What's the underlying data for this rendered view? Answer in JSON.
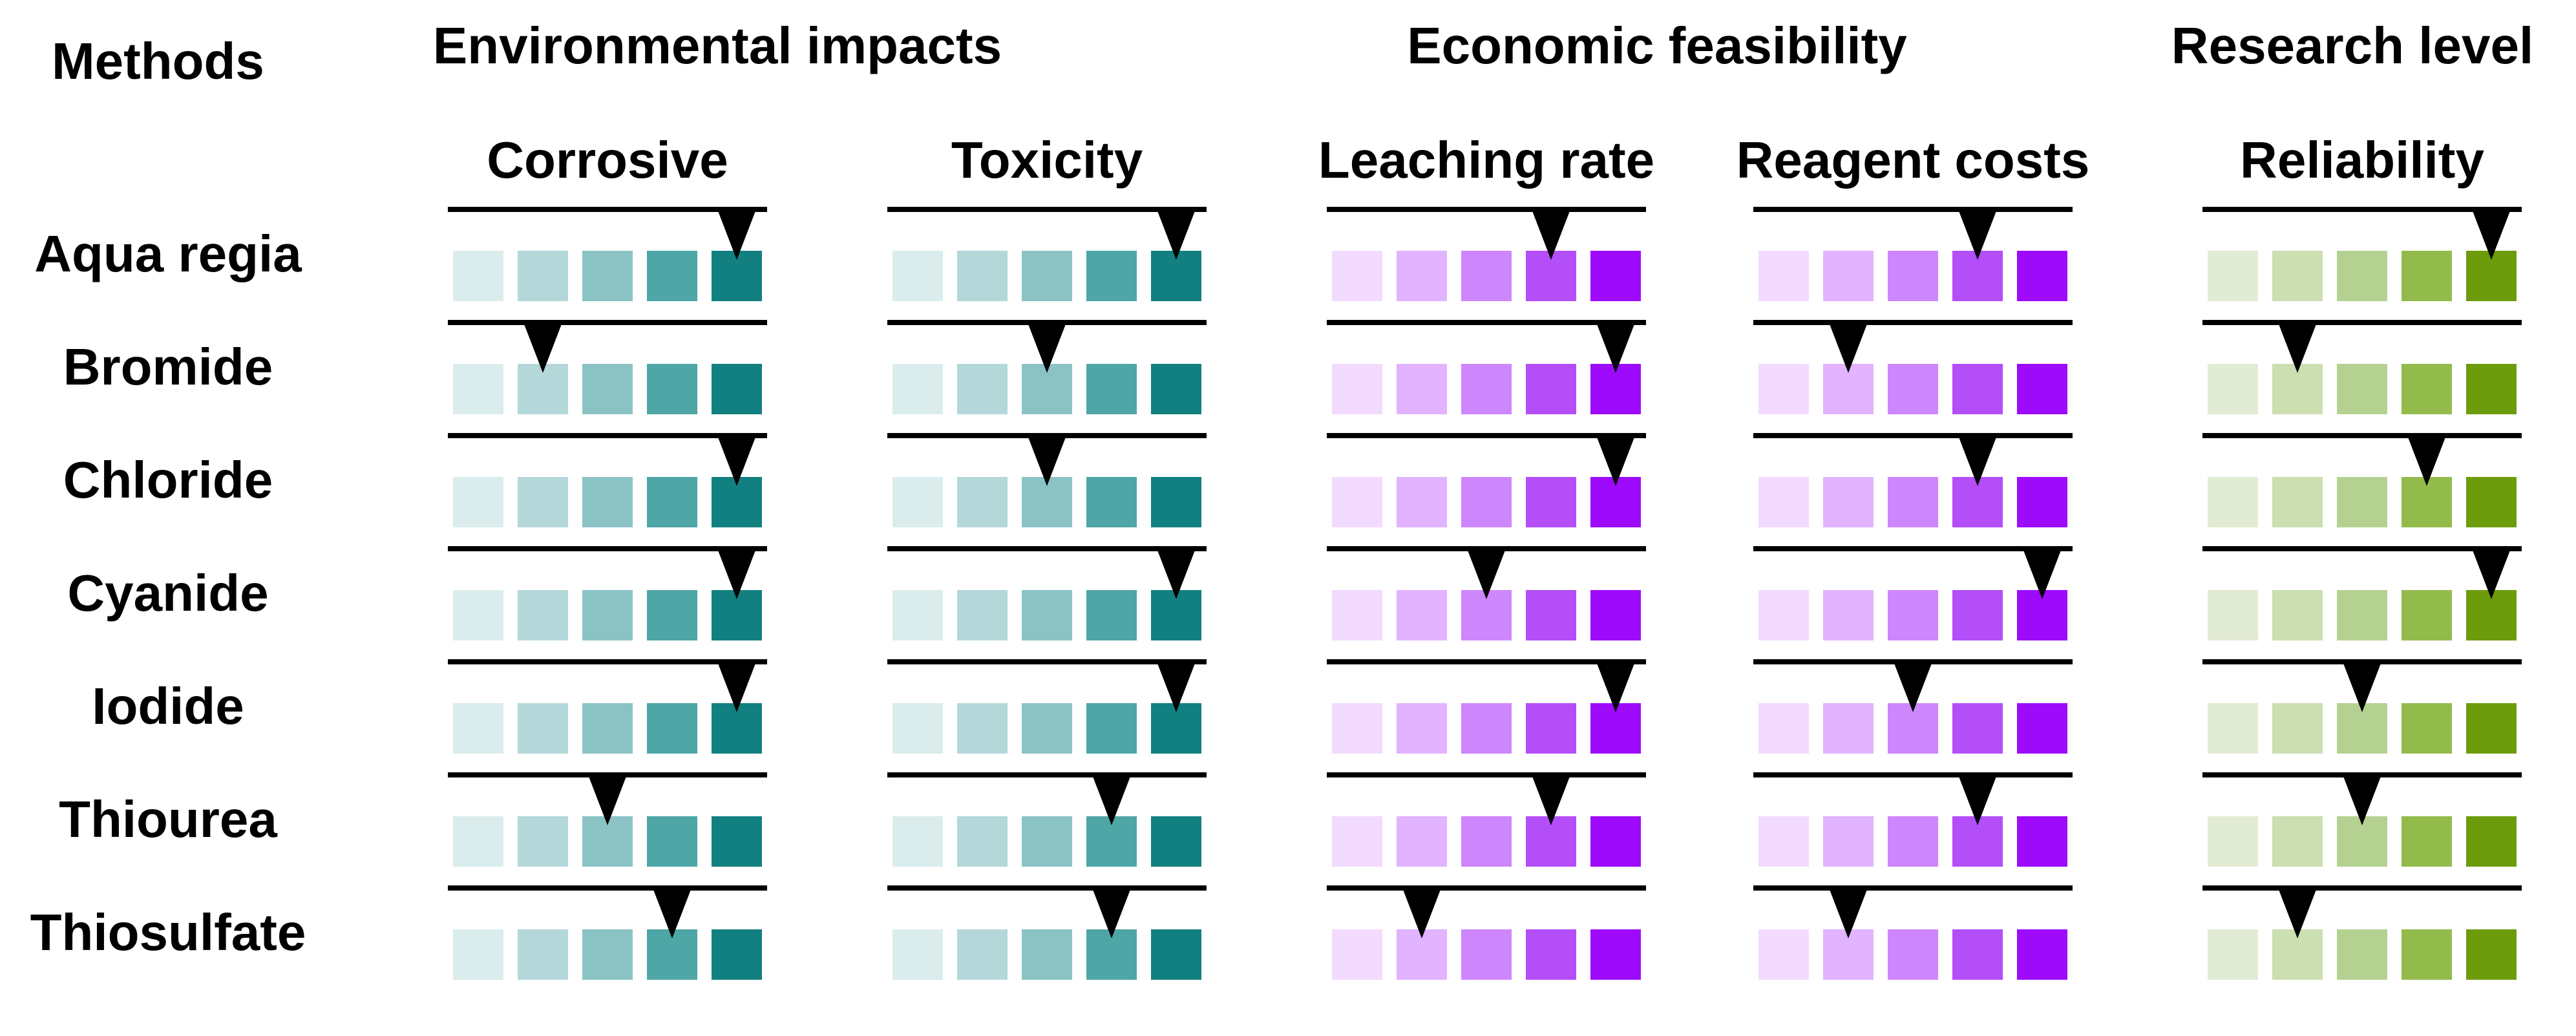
{
  "header": {
    "methods_label": "Methods",
    "groups": [
      "Environmental impacts",
      "Economic feasibility",
      "Research level"
    ]
  },
  "criteria": [
    {
      "label": "Corrosive",
      "palette": "teal"
    },
    {
      "label": "Toxicity",
      "palette": "teal"
    },
    {
      "label": "Leaching rate",
      "palette": "purple"
    },
    {
      "label": "Reagent costs",
      "palette": "purple"
    },
    {
      "label": "Reliability",
      "palette": "green"
    }
  ],
  "palettes": {
    "teal": [
      "#dbecec",
      "#b4d7da",
      "#8bc3c5",
      "#4ea6a6",
      "#128080"
    ],
    "purple": [
      "#f2dbff",
      "#e2b3fe",
      "#ce86fc",
      "#b34ef9",
      "#9e0afb"
    ],
    "green": [
      "#e2ebd3",
      "#cbdfb1",
      "#b5d192",
      "#93bb4c",
      "#6c9c0b"
    ]
  },
  "levels_per_scale": 5,
  "methods": [
    {
      "name": "Aqua regia",
      "ratings": [
        5,
        5,
        4,
        4,
        5
      ]
    },
    {
      "name": "Bromide",
      "ratings": [
        2,
        3,
        5,
        2,
        2
      ]
    },
    {
      "name": "Chloride",
      "ratings": [
        5,
        3,
        5,
        4,
        4
      ]
    },
    {
      "name": "Cyanide",
      "ratings": [
        5,
        5,
        3,
        5,
        5
      ]
    },
    {
      "name": "Iodide",
      "ratings": [
        5,
        5,
        5,
        3,
        3
      ]
    },
    {
      "name": "Thiourea",
      "ratings": [
        3,
        4,
        4,
        4,
        3
      ]
    },
    {
      "name": "Thiosulfate",
      "ratings": [
        4,
        4,
        2,
        2,
        2
      ]
    }
  ]
}
